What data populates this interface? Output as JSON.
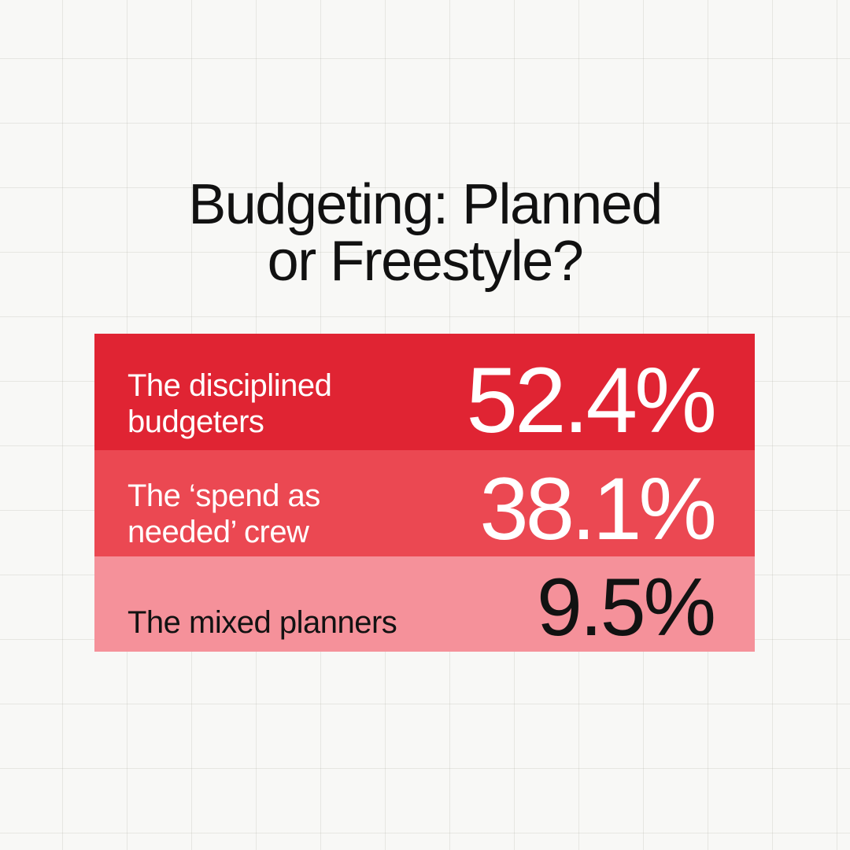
{
  "title": {
    "full": "Budgeting: Planned or Freestyle?",
    "line1": "Budgeting: Planned",
    "line2": "or Freestyle?"
  },
  "chart_data": {
    "type": "bar",
    "title": "Budgeting: Planned or Freestyle?",
    "categories": [
      "The disciplined budgeters",
      "The ‘spend as needed’ crew",
      "The mixed planners"
    ],
    "values": [
      52.4,
      38.1,
      9.5
    ],
    "unit": "%",
    "orientation": "horizontal-stacked-rows",
    "legend_position": "none",
    "grid": "subtle paper grid background",
    "bar_colors": [
      "#E02433",
      "#EB4852",
      "#F5919A"
    ]
  },
  "rows": [
    {
      "label_line1": "The disciplined",
      "label_line2": "budgeters",
      "value": "52.4%",
      "bg": "#E02433",
      "text_color": "#FFFFFF"
    },
    {
      "label_line1": "The ‘spend as",
      "label_line2": "needed’ crew",
      "value": "38.1%",
      "bg": "#EB4852",
      "text_color": "#FFFFFF"
    },
    {
      "label_line1": "The mixed planners",
      "label_line2": "",
      "value": "9.5%",
      "bg": "#F5919A",
      "text_color": "#121212"
    }
  ],
  "background": {
    "paper_color": "#F8F8F6",
    "grid_line_color": "#EBEBE7"
  }
}
